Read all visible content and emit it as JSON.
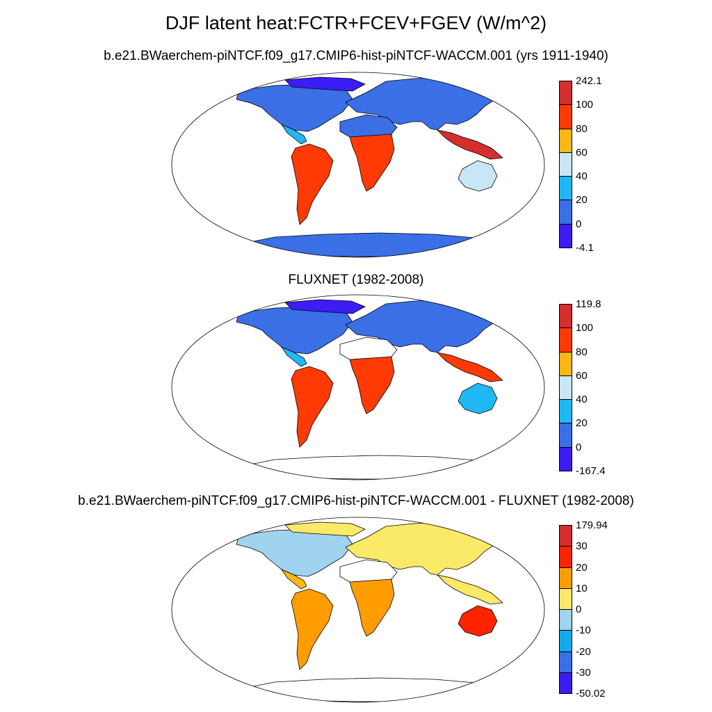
{
  "title": "DJF latent heat:FCTR+FCEV+FGEV (W/m^2)",
  "panels": [
    {
      "subtitle": "b.e21.BWaerchem-piNTCF.f09_g17.CMIP6-hist-piNTCF-WACCM.001 (yrs 1911-1940)",
      "colorbar": {
        "labels": [
          "242.1",
          "100",
          "80",
          "60",
          "40",
          "20",
          "0",
          "-4.1"
        ],
        "colors": [
          "#d62d2d",
          "#ff3a05",
          "#fbb814",
          "#c8e6f5",
          "#1fb8f5",
          "#3a6fe6",
          "#3c1df5"
        ]
      }
    },
    {
      "subtitle": "FLUXNET (1982-2008)",
      "colorbar": {
        "labels": [
          "119.8",
          "100",
          "80",
          "60",
          "40",
          "20",
          "0",
          "-167.4"
        ],
        "colors": [
          "#d62d2d",
          "#ff3a05",
          "#fbb814",
          "#c8e6f5",
          "#1fb8f5",
          "#3a6fe6",
          "#3c1df5"
        ]
      }
    },
    {
      "subtitle": "b.e21.BWaerchem-piNTCF.f09_g17.CMIP6-hist-piNTCF-WACCM.001 - FLUXNET (1982-2008)",
      "colorbar": {
        "labels": [
          "179.94",
          "30",
          "20",
          "10",
          "0",
          "-10",
          "-20",
          "-30",
          "-50.02"
        ],
        "colors": [
          "#d62d2d",
          "#ff2400",
          "#ff9d00",
          "#fbe968",
          "#9fd3ef",
          "#14a9ee",
          "#3a6fe6",
          "#3c1df5"
        ]
      }
    }
  ],
  "continent_fill": {
    "panel1": {
      "north_america": "#3a6fe6",
      "arctic": "#3c1df5",
      "central_america": "#1fb8f5",
      "south_america": "#ff3a05",
      "europe_asia": "#3a6fe6",
      "sahara": "#3a6fe6",
      "africa_tropics": "#ff3a05",
      "southeast_asia": "#d62d2d",
      "australia": "#c8e6f5",
      "antarctica": "#3a6fe6"
    },
    "panel2": {
      "north_america": "#3a6fe6",
      "arctic": "#3c1df5",
      "central_america": "#1fb8f5",
      "south_america": "#ff3a05",
      "europe_asia": "#3a6fe6",
      "sahara": "#ffffff",
      "africa_tropics": "#ff3a05",
      "southeast_asia": "#ff3a05",
      "australia": "#1fb8f5",
      "antarctica": "#ffffff"
    },
    "panel3": {
      "north_america": "#9fd3ef",
      "arctic": "#fbe968",
      "central_america": "#fbb814",
      "south_america": "#ff9d00",
      "europe_asia": "#fbe968",
      "sahara": "#ffffff",
      "africa_tropics": "#ff9d00",
      "southeast_asia": "#fbe968",
      "australia": "#ff2400",
      "antarctica": "#ffffff"
    }
  }
}
